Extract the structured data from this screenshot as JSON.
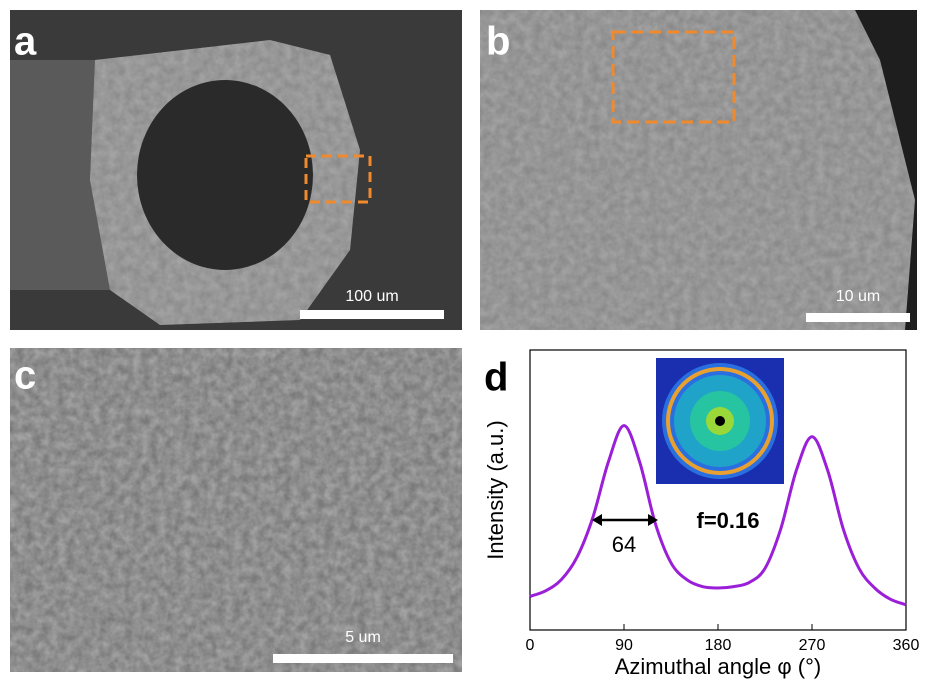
{
  "panels": [
    {
      "label": "a",
      "scale_bar": "100 um"
    },
    {
      "label": "b",
      "scale_bar": "10 um"
    },
    {
      "label": "c",
      "scale_bar": "5 um"
    }
  ],
  "chart_data": {
    "type": "line",
    "panel_label": "d",
    "xlabel": "Azimuthal angle φ (°)",
    "ylabel": "Intensity (a.u.)",
    "annotations": [
      "64",
      "f=0.16"
    ],
    "x": [
      0,
      15,
      30,
      45,
      60,
      75,
      90,
      105,
      120,
      135,
      150,
      165,
      180,
      195,
      210,
      225,
      240,
      255,
      270,
      285,
      300,
      315,
      330,
      345,
      360
    ],
    "series": [
      {
        "color": "#9b1fd8",
        "values": [
          0.12,
          0.14,
          0.18,
          0.26,
          0.4,
          0.6,
          0.73,
          0.6,
          0.38,
          0.24,
          0.18,
          0.155,
          0.15,
          0.155,
          0.17,
          0.22,
          0.36,
          0.57,
          0.69,
          0.57,
          0.36,
          0.22,
          0.15,
          0.11,
          0.09
        ]
      }
    ],
    "xlim": [
      0,
      360
    ],
    "xticks": [
      0,
      90,
      180,
      270,
      360
    ],
    "ylim": [
      0,
      1
    ]
  }
}
